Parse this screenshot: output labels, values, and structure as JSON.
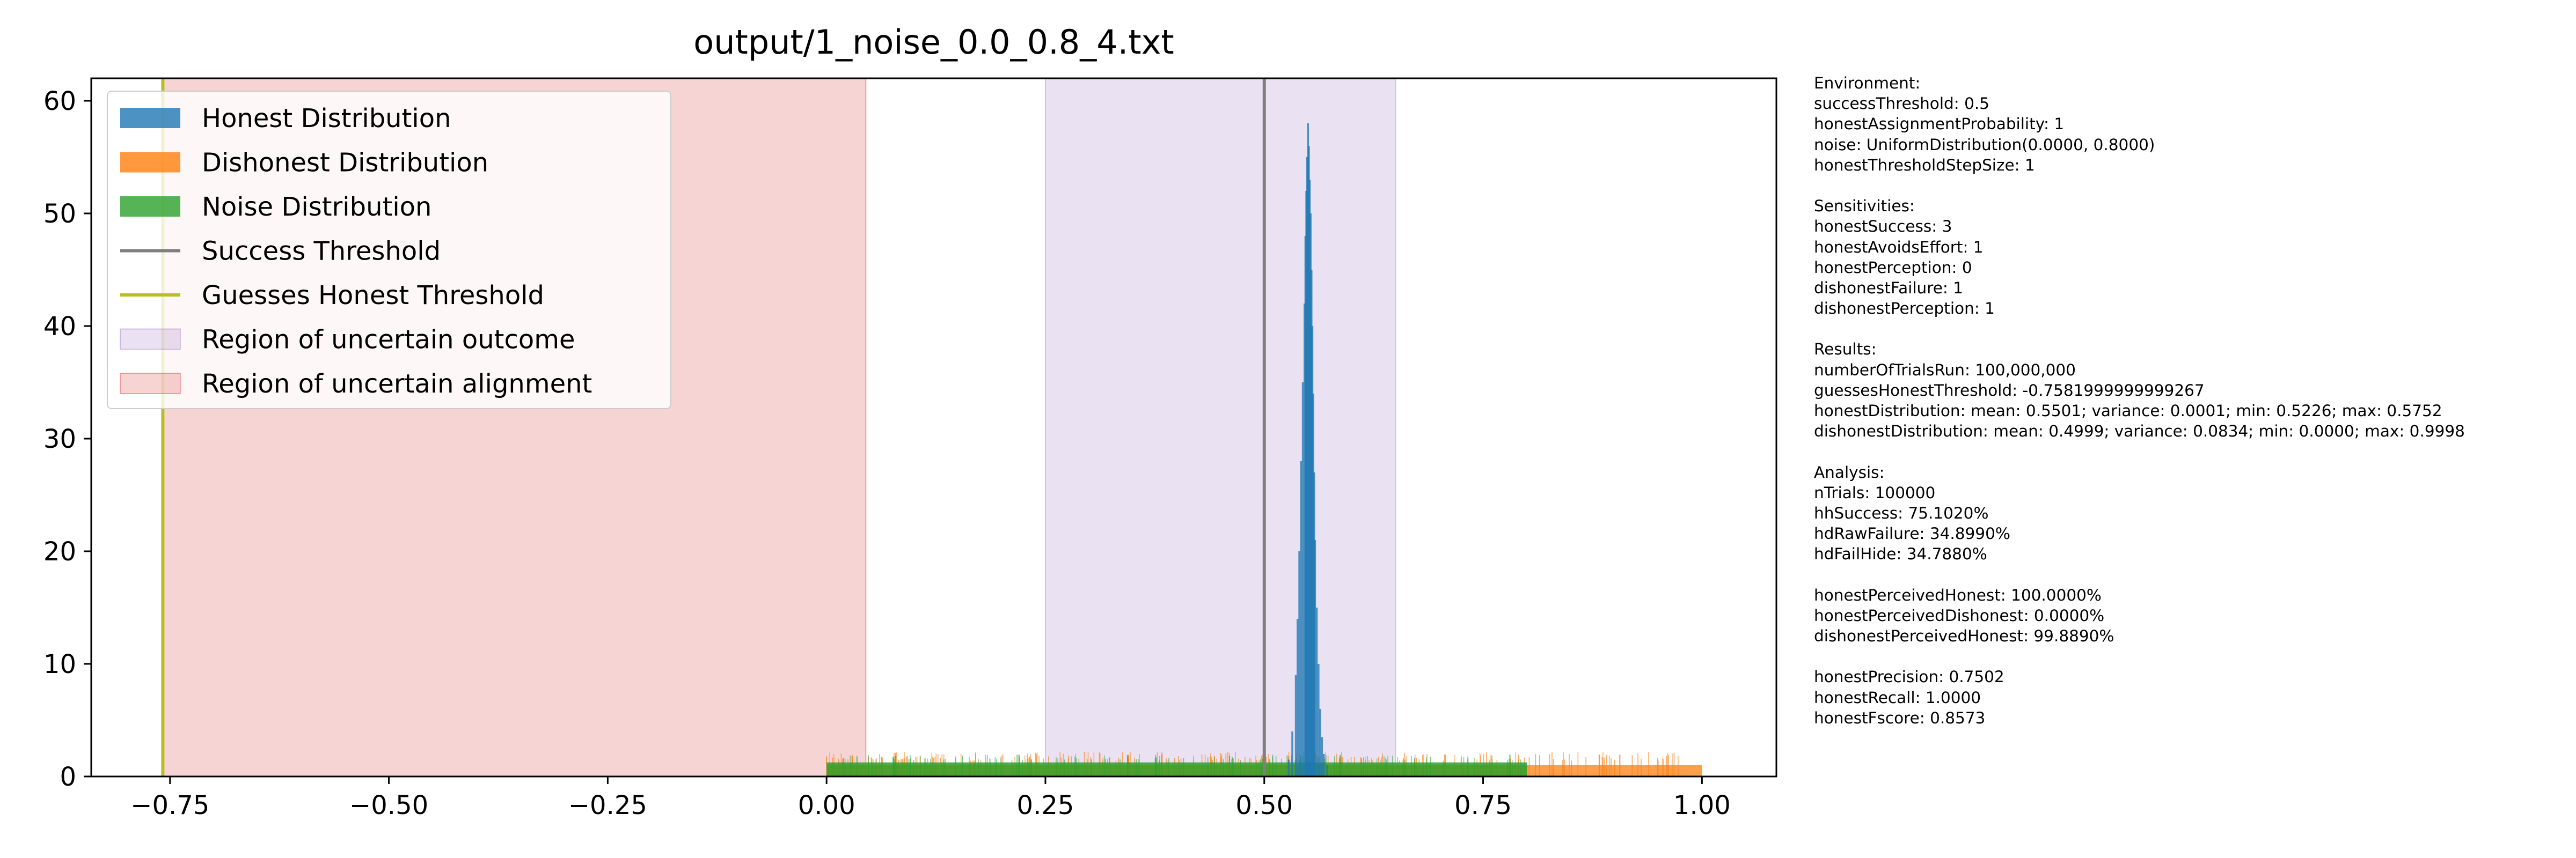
{
  "chart_data": {
    "type": "histogram",
    "title": "output/1_noise_0.0_0.8_4.txt",
    "xlabel": "",
    "ylabel": "",
    "xlim": [
      -0.84,
      1.085
    ],
    "ylim": [
      0,
      62
    ],
    "xticks": [
      -0.75,
      -0.5,
      -0.25,
      0.0,
      0.25,
      0.5,
      0.75,
      1.0
    ],
    "xtick_labels": [
      "−0.75",
      "−0.50",
      "−0.25",
      "0.00",
      "0.25",
      "0.50",
      "0.75",
      "1.00"
    ],
    "yticks": [
      0,
      10,
      20,
      30,
      40,
      50,
      60
    ],
    "ytick_labels": [
      "0",
      "10",
      "20",
      "30",
      "40",
      "50",
      "60"
    ],
    "grid": false,
    "legend_position": "upper left",
    "legend": [
      {
        "label": "Honest Distribution",
        "kind": "patch",
        "color": "#1f77b4"
      },
      {
        "label": "Dishonest Distribution",
        "kind": "patch",
        "color": "#ff7f0e"
      },
      {
        "label": "Noise Distribution",
        "kind": "patch",
        "color": "#2ca02c"
      },
      {
        "label": "Success Threshold",
        "kind": "line",
        "color": "#7f7f7f"
      },
      {
        "label": "Guesses Honest Threshold",
        "kind": "line",
        "color": "#bcbd22"
      },
      {
        "label": "Region of uncertain outcome",
        "kind": "region",
        "color": "#9467bd"
      },
      {
        "label": "Region of uncertain alignment",
        "kind": "region",
        "color": "#d62728"
      }
    ],
    "series": [
      {
        "name": "Honest Distribution",
        "color": "#1f77b4",
        "x": [
          0.528,
          0.532,
          0.536,
          0.538,
          0.54,
          0.542,
          0.544,
          0.546,
          0.547,
          0.548,
          0.549,
          0.55,
          0.551,
          0.552,
          0.553,
          0.554,
          0.555,
          0.556,
          0.557,
          0.558,
          0.56,
          0.562,
          0.564,
          0.566,
          0.568,
          0.572
        ],
        "density": [
          1.5,
          4,
          9,
          14,
          20,
          28,
          35,
          42,
          48,
          52,
          55,
          58,
          56,
          53,
          50,
          45,
          40,
          34,
          27,
          21,
          15,
          10,
          6,
          3.5,
          2,
          1
        ]
      },
      {
        "name": "Dishonest Distribution",
        "color": "#ff7f0e",
        "range": [
          0.0,
          1.0
        ],
        "density": 1.0
      },
      {
        "name": "Noise Distribution",
        "color": "#2ca02c",
        "range": [
          0.0,
          0.8
        ],
        "density": 1.25
      }
    ],
    "vlines": [
      {
        "name": "Success Threshold",
        "x": 0.5,
        "color": "#7f7f7f"
      },
      {
        "name": "Guesses Honest Threshold",
        "x": -0.7582,
        "color": "#bcbd22"
      }
    ],
    "regions": [
      {
        "name": "Region of uncertain outcome",
        "x0": 0.25,
        "x1": 0.65,
        "color": "#9467bd"
      },
      {
        "name": "Region of uncertain alignment",
        "x0": -0.7582,
        "x1": 0.0449,
        "color": "#d62728"
      }
    ]
  },
  "side_panel": {
    "lines": [
      "Environment:",
      "successThreshold: 0.5",
      "honestAssignmentProbability: 1",
      "noise: UniformDistribution(0.0000, 0.8000)",
      "honestThresholdStepSize: 1",
      "",
      "Sensitivities:",
      "honestSuccess: 3",
      "honestAvoidsEffort: 1",
      "honestPerception: 0",
      "dishonestFailure: 1",
      "dishonestPerception: 1",
      "",
      "Results:",
      "numberOfTrialsRun: 100,000,000",
      "guessesHonestThreshold: -0.7581999999999267",
      "honestDistribution: mean: 0.5501; variance: 0.0001; min: 0.5226; max: 0.5752",
      "dishonestDistribution: mean: 0.4999; variance: 0.0834; min: 0.0000; max: 0.9998",
      "",
      "Analysis:",
      "nTrials: 100000",
      "hhSuccess: 75.1020%",
      "hdRawFailure: 34.8990%",
      "hdFailHide: 34.7880%",
      "",
      "honestPerceivedHonest: 100.0000%",
      "honestPerceivedDishonest: 0.0000%",
      "dishonestPerceivedHonest: 99.8890%",
      "",
      "honestPrecision: 0.7502",
      "honestRecall: 1.0000",
      "honestFscore: 0.8573"
    ]
  }
}
